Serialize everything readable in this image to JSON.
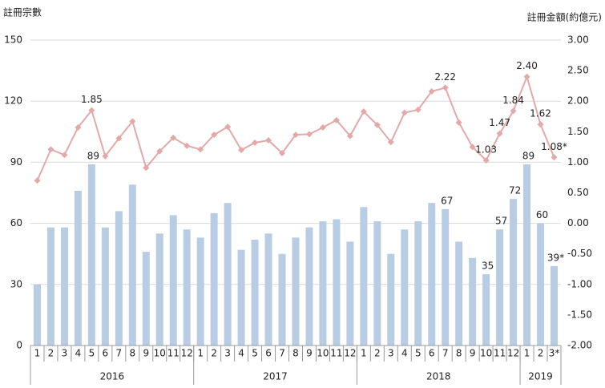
{
  "chart_data": {
    "type": "bar",
    "y_label": "註冊宗數",
    "y2_label": "註冊金額(約億元)",
    "categories": [
      "1",
      "2",
      "3",
      "4",
      "5",
      "6",
      "7",
      "8",
      "9",
      "10",
      "11",
      "12",
      "1",
      "2",
      "3",
      "4",
      "5",
      "6",
      "7",
      "8",
      "9",
      "10",
      "11",
      "12",
      "1",
      "2",
      "3",
      "4",
      "5",
      "6",
      "7",
      "8",
      "9",
      "10",
      "11",
      "12",
      "1",
      "2",
      "3*"
    ],
    "years": [
      "2016",
      "2017",
      "2018",
      "2019"
    ],
    "series": [
      {
        "type": "bar",
        "color": "#b8cce4",
        "values": [
          30,
          58,
          58,
          76,
          89,
          58,
          66,
          79,
          46,
          55,
          64,
          57,
          53,
          65,
          70,
          47,
          52,
          55,
          45,
          53,
          58,
          61,
          62,
          51,
          68,
          61,
          45,
          57,
          61,
          70,
          67,
          51,
          43,
          35,
          57,
          72,
          89,
          60,
          39
        ],
        "value_labels": [
          null,
          null,
          null,
          null,
          "89",
          null,
          null,
          null,
          null,
          null,
          null,
          null,
          null,
          null,
          null,
          null,
          null,
          null,
          null,
          null,
          null,
          null,
          null,
          null,
          null,
          null,
          null,
          null,
          null,
          null,
          "67",
          null,
          null,
          "35",
          "57",
          "72",
          "89",
          "60",
          "39*"
        ]
      },
      {
        "type": "line",
        "axis": "y2",
        "color": "#e3a9a9",
        "values": [
          0.7,
          1.21,
          1.12,
          1.57,
          1.85,
          1.1,
          1.39,
          1.67,
          0.91,
          1.18,
          1.4,
          1.27,
          1.21,
          1.45,
          1.58,
          1.2,
          1.32,
          1.36,
          1.15,
          1.45,
          1.46,
          1.57,
          1.69,
          1.43,
          1.83,
          1.61,
          1.33,
          1.81,
          1.86,
          2.16,
          2.22,
          1.65,
          1.25,
          1.03,
          1.47,
          1.84,
          2.4,
          1.62,
          1.08
        ],
        "value_labels": [
          null,
          null,
          null,
          null,
          "1.85",
          null,
          null,
          null,
          null,
          null,
          null,
          null,
          null,
          null,
          null,
          null,
          null,
          null,
          null,
          null,
          null,
          null,
          null,
          null,
          null,
          null,
          null,
          null,
          null,
          null,
          "2.22",
          null,
          null,
          "1.03",
          "1.47",
          "1.84",
          "2.40",
          "1.62",
          "1.08*"
        ]
      }
    ],
    "ylim": [
      0,
      150
    ],
    "yticks": [
      0,
      30,
      60,
      90,
      120,
      150
    ],
    "y2lim": [
      -2,
      3
    ],
    "y2ticks": [
      {
        "value": -2,
        "label": "-2.00"
      },
      {
        "value": -1.5,
        "label": "-1.50"
      },
      {
        "value": -1,
        "label": "-1.00"
      },
      {
        "value": -0.5,
        "label": "-0.50"
      },
      {
        "value": 0,
        "label": "0.00"
      },
      {
        "value": 0.5,
        "label": "0.50"
      },
      {
        "value": 1,
        "label": "1.00"
      },
      {
        "value": 1.5,
        "label": "1.50"
      },
      {
        "value": 2,
        "label": "2.00"
      },
      {
        "value": 2.5,
        "label": "2.50"
      },
      {
        "value": 3,
        "label": "3.00"
      }
    ],
    "grid": true
  }
}
